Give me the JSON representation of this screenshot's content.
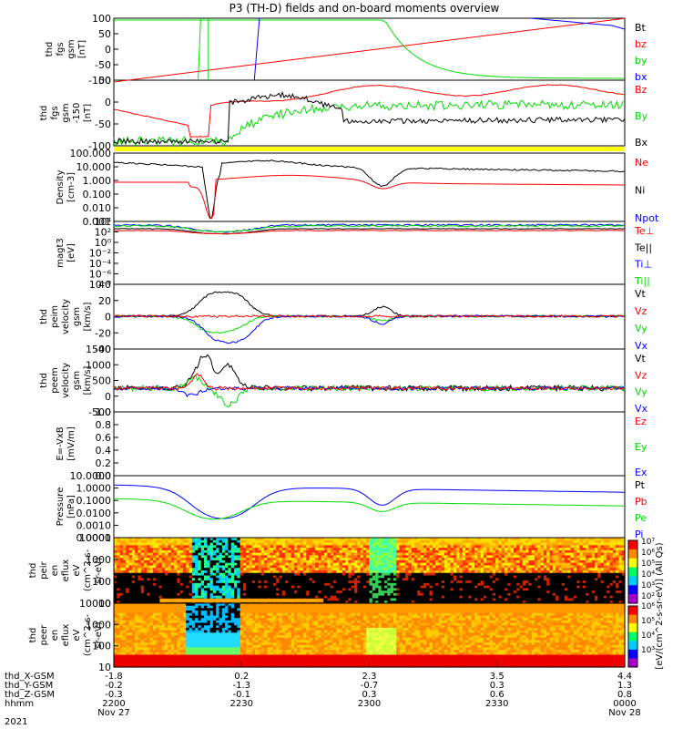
{
  "chart_data": {
    "type": "line",
    "title": "P3 (TH-D) fields and on-board moments overview",
    "year": "2021",
    "panels": [
      {
        "id": "fgs",
        "ylabel": [
          "thd",
          "fgs",
          "gsm",
          "[nT]"
        ],
        "ylim": [
          -100,
          100
        ],
        "ticks": [
          "100",
          "50",
          "0",
          "-50",
          "-100"
        ],
        "legend": [
          {
            "name": "Bt",
            "color": "#000000"
          },
          {
            "name": "bz",
            "color": "#ff0000"
          },
          {
            "name": "by",
            "color": "#00dd00"
          },
          {
            "name": "bx",
            "color": "#0000ff"
          }
        ]
      },
      {
        "id": "fgs_clip",
        "ylabel": [
          "thd",
          "fgs",
          "gsm",
          "-150",
          "[nT]"
        ],
        "ylim": [
          -130,
          60
        ],
        "ticks": [
          "50",
          "0",
          "-50",
          "-100"
        ],
        "legend": [
          {
            "name": "Bz",
            "color": "#ff0000"
          },
          {
            "name": "By",
            "color": "#00dd00"
          },
          {
            "name": "Bx",
            "color": "#000000"
          }
        ]
      },
      {
        "id": "density",
        "ylabel": [
          "Density",
          "[cm-3]"
        ],
        "scale": "log",
        "ticks": [
          "100.000",
          "10.000",
          "1.000",
          "0.100",
          "0.010",
          "0.001"
        ],
        "legend": [
          {
            "name": "Ne",
            "color": "#ff0000"
          },
          {
            "name": "Ni",
            "color": "#000000"
          },
          {
            "name": "Npot",
            "color": "#0000ff"
          }
        ]
      },
      {
        "id": "temp",
        "ylabel": [
          "magt3",
          "[eV]"
        ],
        "scale": "log",
        "ticks": [
          "10⁴",
          "10²",
          "10⁰",
          "10⁻²",
          "10⁻⁴",
          "10⁻⁶",
          "10⁻⁸"
        ],
        "legend": [
          {
            "name": "Te⊥",
            "color": "#ff0000"
          },
          {
            "name": "Te||",
            "color": "#000000"
          },
          {
            "name": "Ti⊥",
            "color": "#0000ff"
          },
          {
            "name": "Ti||",
            "color": "#00dd00"
          }
        ]
      },
      {
        "id": "peim",
        "ylabel": [
          "thd",
          "peim",
          "velocity",
          "gsm",
          "[km/s]"
        ],
        "ylim": [
          -40,
          40
        ],
        "ticks": [
          "40",
          "20",
          "0",
          "-20",
          "-40"
        ],
        "legend": [
          {
            "name": "Vt",
            "color": "#000000"
          },
          {
            "name": "Vz",
            "color": "#ff0000"
          },
          {
            "name": "Vy",
            "color": "#00dd00"
          },
          {
            "name": "Vx",
            "color": "#0000ff"
          }
        ]
      },
      {
        "id": "peem",
        "ylabel": [
          "thd",
          "peem",
          "velocity",
          "gsm",
          "[km/s]"
        ],
        "ylim": [
          -500,
          1500
        ],
        "ticks": [
          "1500",
          "1000",
          "500",
          "0",
          "-500"
        ],
        "legend": [
          {
            "name": "Vt",
            "color": "#000000"
          },
          {
            "name": "Vz",
            "color": "#ff0000"
          },
          {
            "name": "Vy",
            "color": "#00dd00"
          },
          {
            "name": "Vx",
            "color": "#0000ff"
          }
        ]
      },
      {
        "id": "efield",
        "ylabel": [
          "E=-VxB",
          "[mV/m]"
        ],
        "ylim": [
          0,
          1
        ],
        "ticks": [
          "1.0",
          "0.8",
          "0.6",
          "0.4",
          "0.2",
          "0.0"
        ],
        "legend": [
          {
            "name": "Ez",
            "color": "#ff0000"
          },
          {
            "name": "Ey",
            "color": "#00dd00"
          },
          {
            "name": "Ex",
            "color": "#0000ff"
          }
        ]
      },
      {
        "id": "pressure",
        "ylabel": [
          "Pressure",
          "[nPa]"
        ],
        "scale": "log",
        "ticks": [
          "10.0000",
          "1.0000",
          "0.1000",
          "0.0100",
          "0.0010",
          "0.0001"
        ],
        "legend": [
          {
            "name": "Pt",
            "color": "#000000"
          },
          {
            "name": "Pb",
            "color": "#ff0000"
          },
          {
            "name": "Pe",
            "color": "#00dd00"
          },
          {
            "name": "Pi",
            "color": "#0000ff"
          }
        ]
      },
      {
        "id": "peir",
        "ylabel": [
          "thd",
          "peir",
          "en",
          "eflux",
          "eV",
          "(cm^2-s-",
          "sr-eV)"
        ],
        "scale": "log",
        "ticks": [
          "10000",
          "1000",
          "100",
          "10"
        ]
      },
      {
        "id": "peer",
        "ylabel": [
          "thd",
          "peer",
          "en",
          "eflux",
          "eV",
          "(cm^2-s-",
          "sr-eV)"
        ],
        "scale": "log",
        "ticks": [
          "10000",
          "1000",
          "100",
          "10"
        ]
      }
    ],
    "colorbar_ticks": [
      "10⁷",
      "10⁶",
      "10⁵",
      "10⁴",
      "10³",
      "10²",
      "10⁶",
      "10⁵",
      "10⁴",
      "10³"
    ],
    "colorbar_label": "[eV/(cm^2-s-sr-eV)] (All Qs)",
    "xaxis": {
      "rows": [
        "thd_X-GSM",
        "thd_Y-GSM",
        "thd_Z-GSM",
        "hhmm"
      ],
      "ticks": [
        {
          "vals": [
            "-1.8",
            "-0.2",
            "-0.3",
            "2200"
          ],
          "date": "Nov 27"
        },
        {
          "vals": [
            "0.2",
            "-1.3",
            "-0.1",
            "2230"
          ],
          "date": ""
        },
        {
          "vals": [
            "2.3",
            "-0.7",
            "0.3",
            "2300"
          ],
          "date": ""
        },
        {
          "vals": [
            "3.5",
            "0.3",
            "0.6",
            "2330"
          ],
          "date": ""
        },
        {
          "vals": [
            "4.4",
            "1.3",
            "0.8",
            "0000"
          ],
          "date": "Nov 28"
        }
      ]
    }
  }
}
